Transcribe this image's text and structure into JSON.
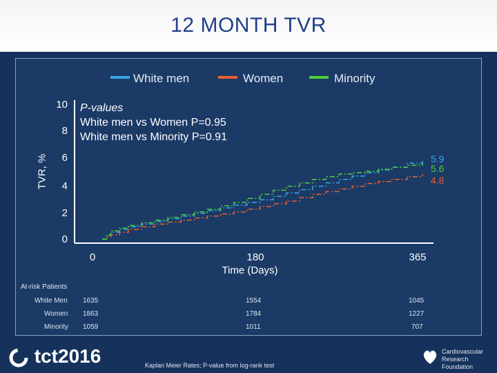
{
  "title": "12 MONTH TVR",
  "chart_data": {
    "type": "line",
    "ylabel": "TVR, %",
    "xlabel": "Time (Days)",
    "ylim": [
      0,
      10
    ],
    "xlim": [
      0,
      365
    ],
    "y_ticks": [
      "0",
      "2",
      "4",
      "6",
      "8",
      "10"
    ],
    "x_ticks": [
      "0",
      "180",
      "365"
    ],
    "legend": [
      "White men",
      "Women",
      "Minority"
    ],
    "colors": {
      "White men": "#3aa6e8",
      "Women": "#e8612c",
      "Minority": "#4ccf3a"
    },
    "series": [
      {
        "name": "White men",
        "x": [
          0,
          10,
          30,
          60,
          90,
          120,
          150,
          180,
          210,
          240,
          270,
          300,
          330,
          365
        ],
        "y": [
          0,
          0.5,
          0.9,
          1.3,
          1.7,
          2.1,
          2.5,
          2.9,
          3.4,
          3.9,
          4.4,
          4.9,
          5.3,
          5.9
        ]
      },
      {
        "name": "Women",
        "x": [
          0,
          10,
          30,
          60,
          90,
          120,
          150,
          180,
          210,
          240,
          270,
          300,
          330,
          365
        ],
        "y": [
          0,
          0.3,
          0.7,
          1.1,
          1.4,
          1.7,
          2.0,
          2.4,
          2.8,
          3.3,
          3.7,
          4.1,
          4.4,
          4.8
        ]
      },
      {
        "name": "Minority",
        "x": [
          0,
          10,
          30,
          60,
          90,
          120,
          150,
          180,
          210,
          240,
          270,
          300,
          330,
          365
        ],
        "y": [
          0,
          0.6,
          1.0,
          1.4,
          1.8,
          2.2,
          2.7,
          3.3,
          3.9,
          4.4,
          4.8,
          5.0,
          5.3,
          5.6
        ]
      }
    ],
    "end_labels": [
      {
        "name": "White men",
        "text": "5.9"
      },
      {
        "name": "Minority",
        "text": "5.6"
      },
      {
        "name": "Women",
        "text": "4.8"
      }
    ],
    "pvalues": {
      "header": "P-values",
      "rows": [
        "White men vs Women  P=0.95",
        "White men vs Minority P=0.91"
      ]
    }
  },
  "at_risk": {
    "title": "At-risk Patients",
    "rows": [
      {
        "label": "White Men",
        "values": [
          "1635",
          "1554",
          "1045"
        ]
      },
      {
        "label": "Women",
        "values": [
          "1863",
          "1784",
          "1227"
        ]
      },
      {
        "label": "Minority",
        "values": [
          "1059",
          "1011",
          "707"
        ]
      }
    ]
  },
  "footnote": "Kaplan Meier Rates; P-value from log-rank test",
  "logos": {
    "left": "tct2016",
    "right_line1": "Cardiovascular",
    "right_line2": "Research Foundation"
  }
}
